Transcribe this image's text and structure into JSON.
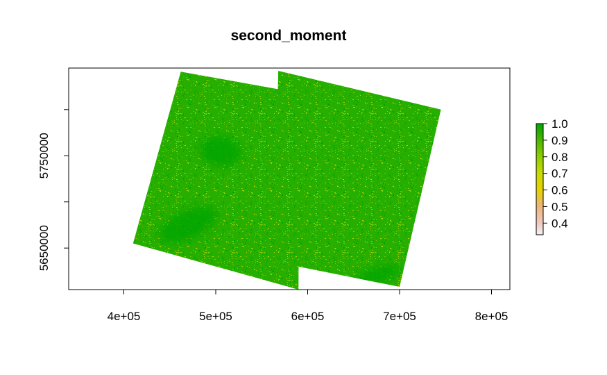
{
  "chart_data": {
    "type": "heatmap",
    "title": "second_moment",
    "xlabel": "",
    "ylabel": "",
    "xlim": [
      340000,
      820000
    ],
    "ylim": [
      5605000,
      5845000
    ],
    "x_ticks": [
      {
        "value": 400000,
        "label": "4e+05"
      },
      {
        "value": 500000,
        "label": "5e+05"
      },
      {
        "value": 600000,
        "label": "6e+05"
      },
      {
        "value": 700000,
        "label": "7e+05"
      },
      {
        "value": 800000,
        "label": "8e+05"
      }
    ],
    "y_ticks": [
      {
        "value": 5650000,
        "label": "5650000"
      },
      {
        "value": 5700000,
        "label": ""
      },
      {
        "value": 5750000,
        "label": "5750000"
      },
      {
        "value": 5800000,
        "label": ""
      }
    ],
    "grid": false,
    "raster_tiles": [
      {
        "corners": [
          [
            462000,
            5841000
          ],
          [
            591000,
            5818000
          ],
          [
            590000,
            5605000
          ],
          [
            410000,
            5655000
          ]
        ],
        "typical_value": 0.95
      },
      {
        "corners": [
          [
            568000,
            5842000
          ],
          [
            745000,
            5800000
          ],
          [
            700000,
            5608000
          ],
          [
            564000,
            5635000
          ]
        ],
        "typical_value": 0.95
      }
    ],
    "dark_patches": [
      {
        "x": 470000,
        "y": 5675000,
        "value": 1.0
      },
      {
        "x": 505000,
        "y": 5755000,
        "value": 1.0
      },
      {
        "x": 675000,
        "y": 5620000,
        "value": 1.0
      }
    ],
    "colorbar": {
      "position": "right",
      "min": 0.33,
      "max": 1.0,
      "ticks": [
        {
          "value": 1.0,
          "label": "1.0"
        },
        {
          "value": 0.9,
          "label": "0.9"
        },
        {
          "value": 0.8,
          "label": "0.8"
        },
        {
          "value": 0.7,
          "label": "0.7"
        },
        {
          "value": 0.6,
          "label": "0.6"
        },
        {
          "value": 0.5,
          "label": "0.5"
        },
        {
          "value": 0.4,
          "label": "0.4"
        }
      ],
      "colors": [
        {
          "value": 0.33,
          "hex": "#f2f2f2"
        },
        {
          "value": 0.4,
          "hex": "#f0c9c0"
        },
        {
          "value": 0.5,
          "hex": "#ebb57a"
        },
        {
          "value": 0.6,
          "hex": "#e6d200"
        },
        {
          "value": 0.7,
          "hex": "#c8dc00"
        },
        {
          "value": 0.8,
          "hex": "#8fcf00"
        },
        {
          "value": 0.9,
          "hex": "#4cb700"
        },
        {
          "value": 1.0,
          "hex": "#00a600"
        }
      ]
    }
  }
}
